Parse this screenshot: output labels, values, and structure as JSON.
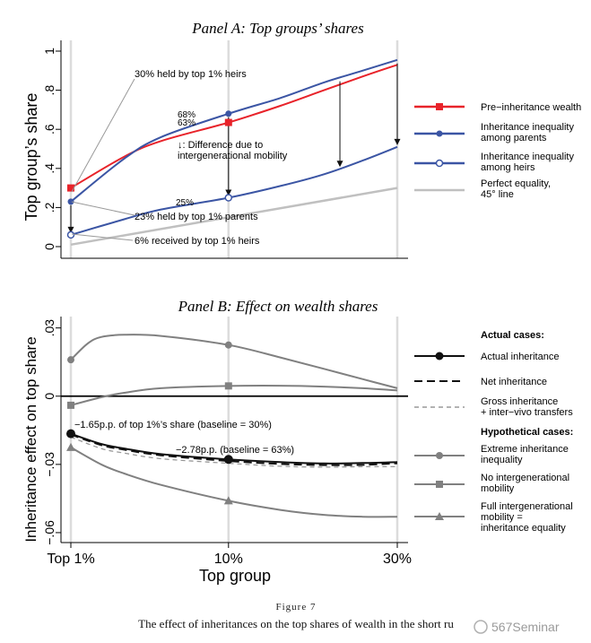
{
  "figure": {
    "number": "Figure 7",
    "caption": "The effect of inheritances on the top shares of wealth in the short ru",
    "watermark": "567Seminar"
  },
  "chart_data": [
    {
      "type": "line",
      "title": "Panel A: Top groups’ shares",
      "ylabel": "Top group’s share",
      "xlabel": "",
      "x_scale": "sqrt",
      "x_ticks": [
        1,
        10,
        30
      ],
      "ylim": [
        0,
        1
      ],
      "yticks": [
        0,
        0.2,
        0.4,
        0.6,
        0.8,
        1
      ],
      "ytick_labels": [
        "0",
        ".2",
        ".4",
        ".6",
        ".8",
        "1"
      ],
      "grid": "vertical lines at x ticks",
      "legend_placement": "right",
      "series": [
        {
          "name": "Pre−inheritance wealth",
          "color": "#e8232a",
          "marker": "square",
          "x": [
            1,
            3,
            5,
            10,
            15,
            20,
            25,
            30
          ],
          "y": [
            0.3,
            0.46,
            0.54,
            0.635,
            0.72,
            0.8,
            0.87,
            0.93
          ]
        },
        {
          "name": "Inheritance inequality among parents",
          "color": "#3b55a4",
          "marker": "circle",
          "x": [
            1,
            3,
            5,
            10,
            15,
            20,
            25,
            30
          ],
          "y": [
            0.23,
            0.45,
            0.56,
            0.68,
            0.76,
            0.84,
            0.9,
            0.955
          ]
        },
        {
          "name": "Inheritance inequality among heirs",
          "color": "#3b55a4",
          "marker": "circle-open",
          "x": [
            1,
            3,
            5,
            10,
            15,
            20,
            25,
            30
          ],
          "y": [
            0.06,
            0.14,
            0.19,
            0.25,
            0.31,
            0.37,
            0.44,
            0.51
          ]
        },
        {
          "name": "Perfect equality, 45° line",
          "color": "#c0c0c0",
          "marker": "none",
          "x": [
            1,
            30
          ],
          "y": [
            0.01,
            0.3
          ]
        }
      ],
      "point_labels": [
        {
          "text": "68%",
          "x": 10,
          "y": 0.68
        },
        {
          "text": "63%",
          "x": 10,
          "y": 0.635
        },
        {
          "text": "25%",
          "x": 10,
          "y": 0.25
        }
      ],
      "annotations": [
        {
          "text": "30% held by top 1% heirs"
        },
        {
          "text": "↓: Difference due to",
          "text2": "intergenerational mobility"
        },
        {
          "text": "23% held by top 1% parents"
        },
        {
          "text": "6% received by top 1% heirs"
        }
      ]
    },
    {
      "type": "line",
      "title": "Panel B: Effect on wealth shares",
      "ylabel": "Inheritance effect on top share",
      "xlabel": "Top group",
      "x_scale": "sqrt",
      "x_ticks": [
        1,
        10,
        30
      ],
      "x_tick_labels": [
        "Top 1%",
        "10%",
        "30%"
      ],
      "ylim": [
        -0.062,
        0.035
      ],
      "yticks": [
        0.03,
        0,
        -0.03,
        -0.06
      ],
      "ytick_labels": [
        ".03",
        "0",
        "−.03",
        "−.06"
      ],
      "legend_placement": "right",
      "legend_group_titles": [
        "Actual cases:",
        "Hypothetical cases:"
      ],
      "series": [
        {
          "name": "Actual inheritance",
          "color": "#111111",
          "style": "solid",
          "marker": "circle",
          "x": [
            1,
            2,
            3,
            5,
            10,
            15,
            20,
            25,
            30
          ],
          "y": [
            -0.0165,
            -0.021,
            -0.023,
            -0.0255,
            -0.0278,
            -0.029,
            -0.0296,
            -0.0294,
            -0.029
          ]
        },
        {
          "name": "Net inheritance",
          "color": "#111111",
          "style": "dashed",
          "marker": "none",
          "x": [
            1,
            2,
            3,
            5,
            10,
            15,
            20,
            25,
            30
          ],
          "y": [
            -0.0168,
            -0.0215,
            -0.0235,
            -0.026,
            -0.0285,
            -0.0298,
            -0.0303,
            -0.0302,
            -0.0295
          ]
        },
        {
          "name": "Gross inheritance + inter−vivo transfers",
          "color": "#999999",
          "style": "dashed",
          "marker": "none",
          "x": [
            1,
            2,
            3,
            5,
            10,
            15,
            20,
            25,
            30
          ],
          "y": [
            -0.018,
            -0.023,
            -0.025,
            -0.0275,
            -0.0295,
            -0.0308,
            -0.0312,
            -0.031,
            -0.031
          ]
        },
        {
          "name": "Extreme inheritance inequality",
          "color": "#808080",
          "style": "solid",
          "marker": "circle",
          "x": [
            1,
            1.5,
            2,
            3,
            5,
            10,
            15,
            20,
            25,
            30
          ],
          "y": [
            0.016,
            0.023,
            0.026,
            0.027,
            0.0265,
            0.0225,
            0.017,
            0.012,
            0.0075,
            0.0035
          ]
        },
        {
          "name": "No intergenerational mobility",
          "color": "#808080",
          "style": "solid",
          "marker": "square",
          "x": [
            1,
            2,
            3,
            5,
            10,
            15,
            20,
            25,
            30
          ],
          "y": [
            -0.004,
            -0.0005,
            0.0015,
            0.0035,
            0.0045,
            0.0046,
            0.0042,
            0.0035,
            0.0025
          ]
        },
        {
          "name": "Full intergenerational mobility = inheritance equality",
          "color": "#808080",
          "style": "solid",
          "marker": "triangle",
          "x": [
            1,
            2,
            3,
            5,
            10,
            15,
            20,
            25,
            30
          ],
          "y": [
            -0.0225,
            -0.03,
            -0.034,
            -0.039,
            -0.046,
            -0.05,
            -0.0522,
            -0.053,
            -0.053
          ]
        }
      ],
      "annotations": [
        {
          "text": "−1.65p.p. of top 1%’s share (baseline = 30%)"
        },
        {
          "text": "−2.78p.p. (baseline = 63%)"
        }
      ]
    }
  ]
}
